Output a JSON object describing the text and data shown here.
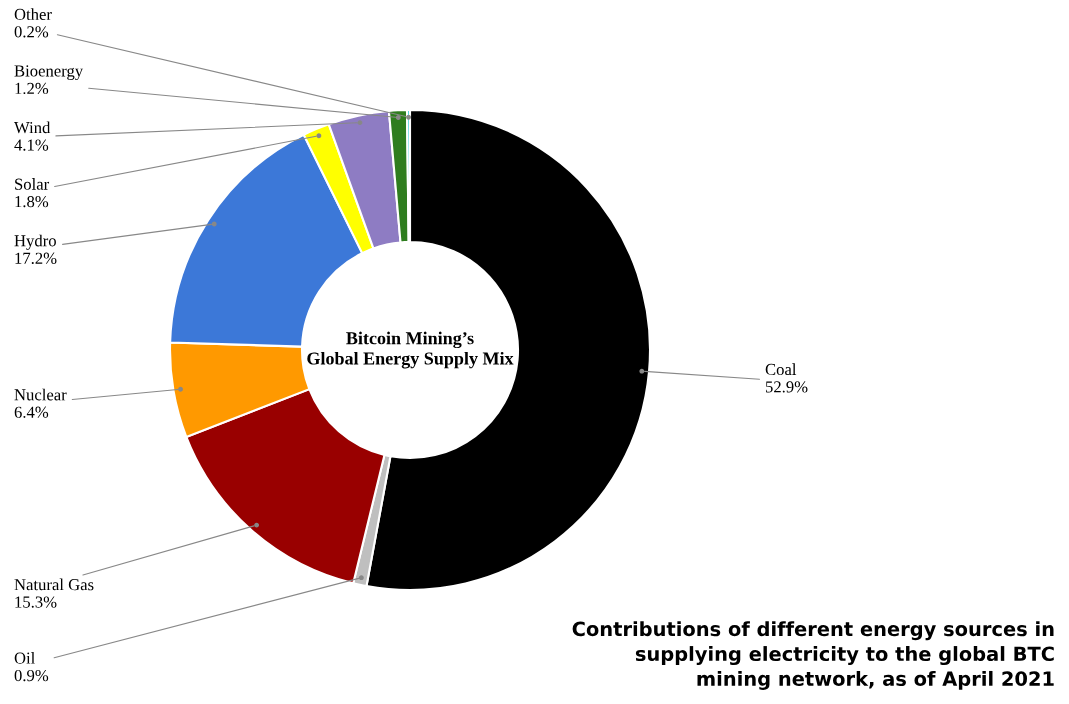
{
  "chart_data": {
    "type": "donut",
    "title": "Bitcoin Mining’s\nGlobal Energy Supply Mix",
    "categories": [
      "Coal",
      "Oil",
      "Natural Gas",
      "Nuclear",
      "Hydro",
      "Solar",
      "Wind",
      "Bioenergy",
      "Other"
    ],
    "values": [
      52.9,
      0.9,
      15.3,
      6.4,
      17.2,
      1.8,
      4.1,
      1.2,
      0.2
    ],
    "colors": [
      "#000000",
      "#bfbfbf",
      "#990000",
      "#ff9900",
      "#3c78d8",
      "#ffff00",
      "#8e7cc3",
      "#2e7d1e",
      "#4dd0e1"
    ],
    "value_labels": [
      "52.9%",
      "0.9%",
      "15.3%",
      "6.4%",
      "17.2%",
      "1.8%",
      "4.1%",
      "1.2%",
      "0.2%"
    ],
    "annotations": [
      "Contributions of different energy sources in\nsupplying electricity to the global BTC\nmining network, as of April 2021"
    ],
    "legend": false
  }
}
